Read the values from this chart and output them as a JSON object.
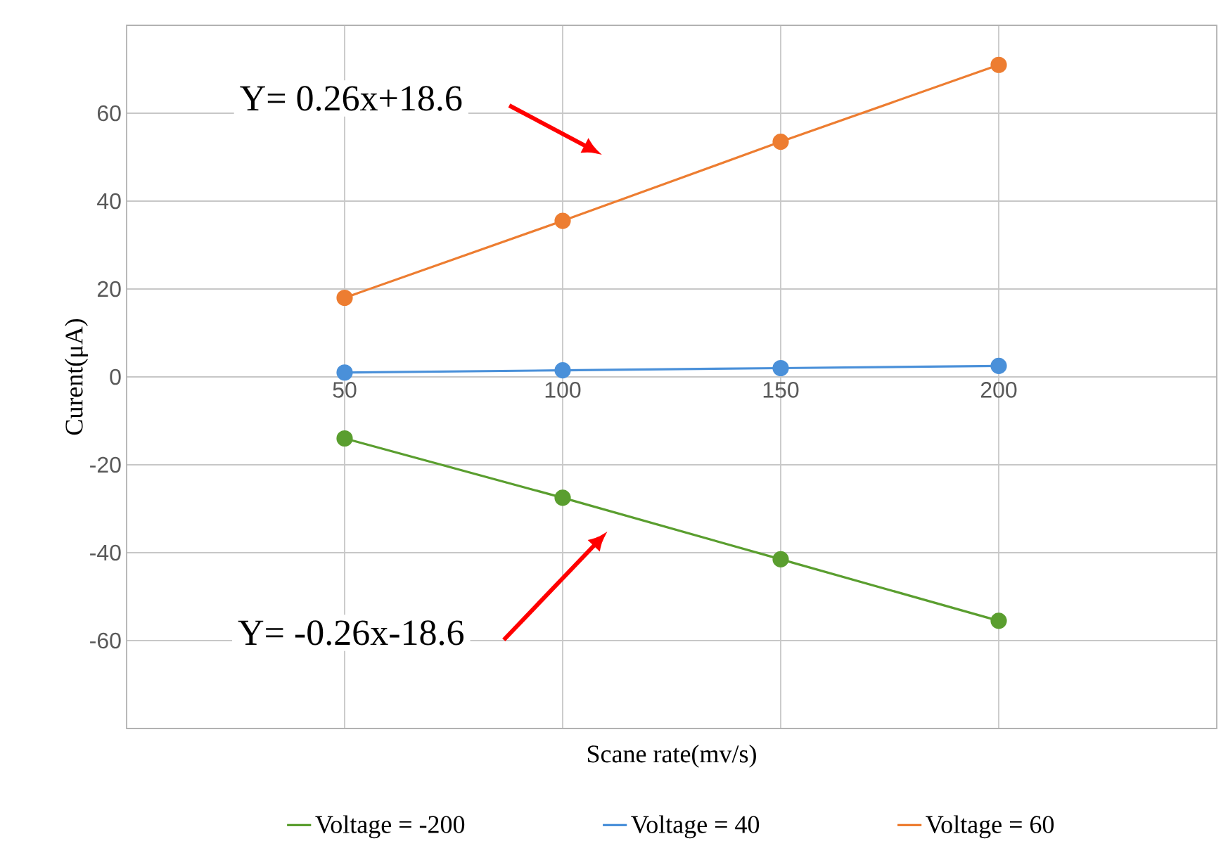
{
  "chart_data": {
    "type": "line",
    "xlabel": "Scane rate(mv/s)",
    "ylabel": "Curent(μA)",
    "x": [
      50,
      100,
      150,
      200
    ],
    "series": [
      {
        "name": "Voltage = -200",
        "color": "#5a9e2f",
        "values": [
          -14,
          -27.5,
          -41.5,
          -55.5
        ]
      },
      {
        "name": "Voltage = 40",
        "color": "#4a90d9",
        "values": [
          1,
          1.5,
          2,
          2.5
        ]
      },
      {
        "name": "Voltage = 60",
        "color": "#ed7d31",
        "values": [
          18,
          35.5,
          53.5,
          71
        ]
      }
    ],
    "xlim": [
      0,
      250
    ],
    "xticks": [
      50,
      100,
      150,
      200
    ],
    "ylim": [
      -80,
      80
    ],
    "yticks": [
      -60,
      -40,
      -20,
      0,
      20,
      40,
      60
    ],
    "grid": true,
    "legend": "bottom",
    "marker": "circle",
    "line_style": "solid",
    "annotations": [
      "Y= 0.26x+18.6",
      "Y= -0.26x-18.6"
    ]
  }
}
